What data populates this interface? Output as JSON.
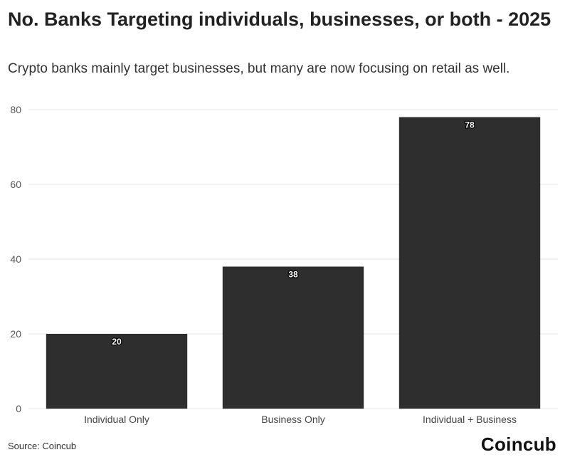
{
  "chart_data": {
    "type": "bar",
    "title": "No. Banks Targeting individuals, businesses, or both - 2025",
    "subtitle": "Crypto banks mainly target businesses, but many are now focusing on retail as well.",
    "categories": [
      "Individual Only",
      "Business Only",
      "Individual + Business"
    ],
    "values": [
      20,
      38,
      78
    ],
    "data_labels": [
      "20",
      "38",
      "78"
    ],
    "yticks": [
      0,
      20,
      40,
      60,
      80
    ],
    "ylim": [
      0,
      80
    ],
    "xlabel": "",
    "ylabel": "",
    "grid": true,
    "legend": "none",
    "bar_color": "#2e2e2e",
    "grid_color": "#e6e6e6"
  },
  "source": "Source: Coincub",
  "logo_text": "Coincub"
}
